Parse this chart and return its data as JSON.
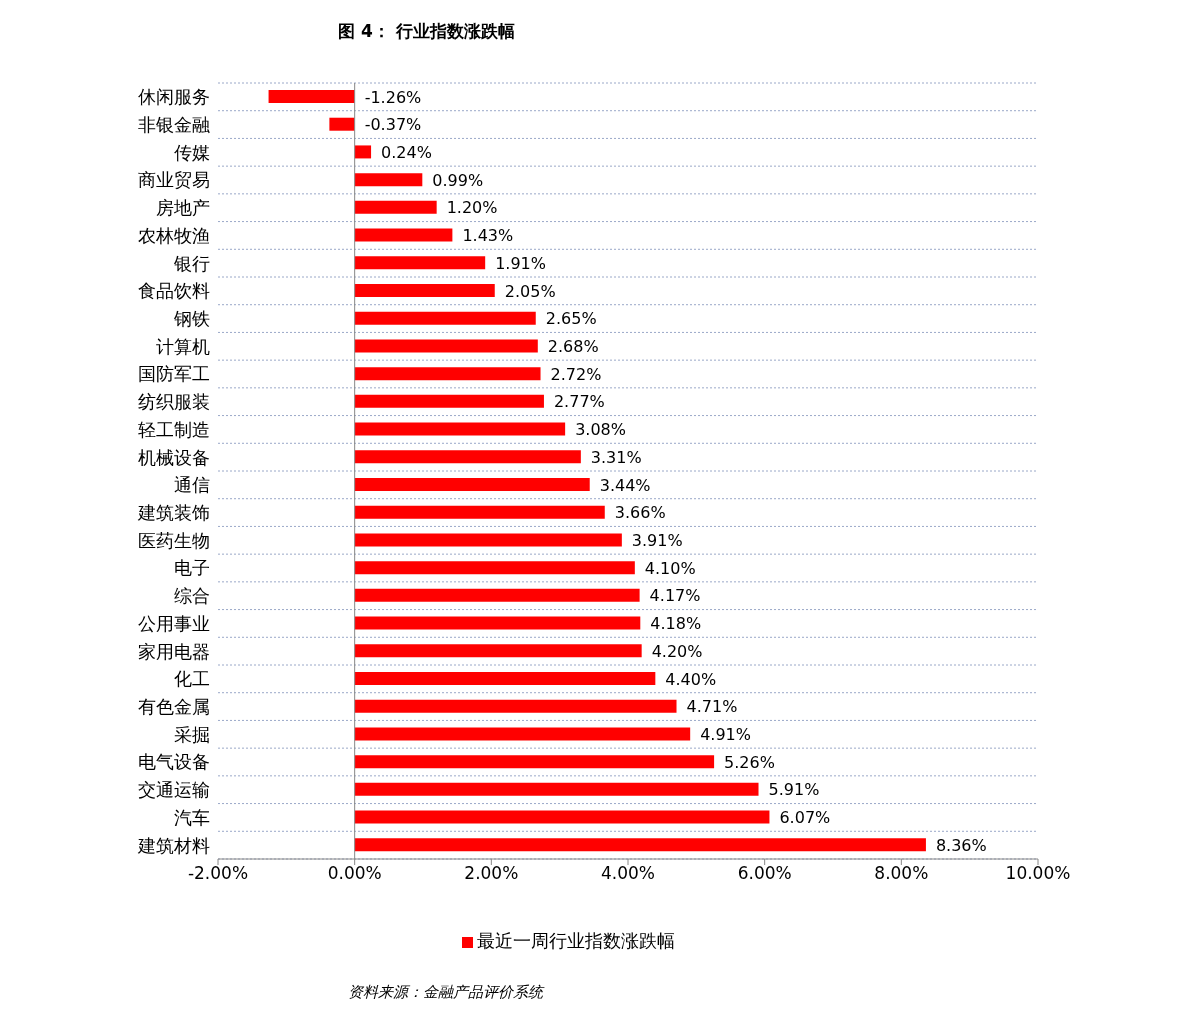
{
  "chart_data": {
    "type": "bar",
    "orientation": "horizontal",
    "title": "图 4： 行业指数涨跌幅",
    "categories": [
      "休闲服务",
      "非银金融",
      "传媒",
      "商业贸易",
      "房地产",
      "农林牧渔",
      "银行",
      "食品饮料",
      "钢铁",
      "计算机",
      "国防军工",
      "纺织服装",
      "轻工制造",
      "机械设备",
      "通信",
      "建筑装饰",
      "医药生物",
      "电子",
      "综合",
      "公用事业",
      "家用电器",
      "化工",
      "有色金属",
      "采掘",
      "电气设备",
      "交通运输",
      "汽车",
      "建筑材料"
    ],
    "series": [
      {
        "name": "最近一周行业指数涨跌幅",
        "color": "#ff0000",
        "values": [
          -1.26,
          -0.37,
          0.24,
          0.99,
          1.2,
          1.43,
          1.91,
          2.05,
          2.65,
          2.68,
          2.72,
          2.77,
          3.08,
          3.31,
          3.44,
          3.66,
          3.91,
          4.1,
          4.17,
          4.18,
          4.2,
          4.4,
          4.71,
          4.91,
          5.26,
          5.91,
          6.07,
          8.36
        ],
        "value_labels": [
          "-1.26%",
          "-0.37%",
          "0.24%",
          "0.99%",
          "1.20%",
          "1.43%",
          "1.91%",
          "2.05%",
          "2.65%",
          "2.68%",
          "2.72%",
          "2.77%",
          "3.08%",
          "3.31%",
          "3.44%",
          "3.66%",
          "3.91%",
          "4.10%",
          "4.17%",
          "4.18%",
          "4.20%",
          "4.40%",
          "4.71%",
          "4.91%",
          "5.26%",
          "5.91%",
          "6.07%",
          "8.36%"
        ]
      }
    ],
    "xlim": [
      -2,
      10
    ],
    "xticks": [
      {
        "value": -2,
        "label": "-2.00%"
      },
      {
        "value": 0,
        "label": "0.00%"
      },
      {
        "value": 2,
        "label": "2.00%"
      },
      {
        "value": 4,
        "label": "4.00%"
      },
      {
        "value": 6,
        "label": "6.00%"
      },
      {
        "value": 8,
        "label": "8.00%"
      },
      {
        "value": 10,
        "label": "10.00%"
      }
    ],
    "grid": "y",
    "legend": "bottom",
    "annotations": [
      "资料来源：金融产品评价系统"
    ]
  }
}
